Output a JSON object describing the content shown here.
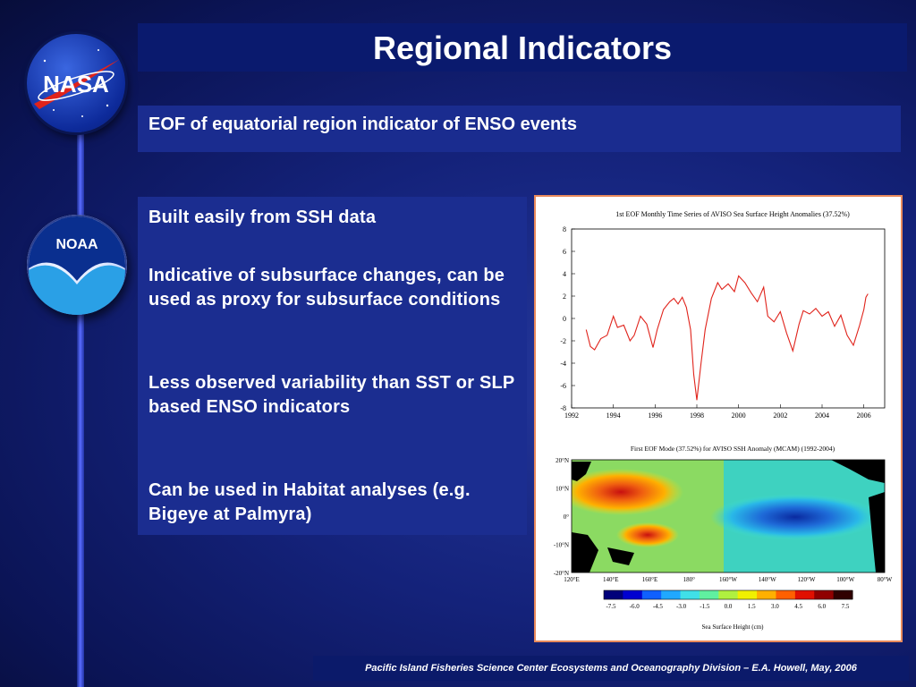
{
  "slide": {
    "title": "Regional Indicators",
    "subtitle": "EOF of equatorial region indicator of ENSO events",
    "bullets": [
      "Built easily from SSH data",
      "Indicative of subsurface changes, can be used as proxy for subsurface conditions",
      "Less observed variability  than SST or SLP based ENSO indicators",
      "Can be used in Habitat analyses (e.g. Bigeye at Palmyra)"
    ],
    "footer": "Pacific Island Fisheries Science Center Ecosystems and Oceanography Division – E.A. Howell, May, 2006"
  },
  "logos": {
    "nasa": "NASA",
    "noaa": "NOAA"
  },
  "colors": {
    "accent_line": "#e0231b",
    "figure_border": "#e98a5c"
  },
  "map": {
    "title": "First EOF Mode (37.52%) for AVISO SSH Anomaly (MCAM) (1992-2004)",
    "lat_labels": [
      "20°N",
      "10°N",
      "0°",
      "-10°N",
      "-20°N"
    ],
    "lon_labels": [
      "120°E",
      "140°E",
      "160°E",
      "180°",
      "160°W",
      "140°W",
      "120°W",
      "100°W",
      "80°W"
    ],
    "colorbar_ticks": [
      "-7.5",
      "-6.0",
      "-4.5",
      "-3.0",
      "-1.5",
      "0.0",
      "1.5",
      "3.0",
      "4.5",
      "6.0",
      "7.5"
    ],
    "colorbar_label": "Sea Surface Height (cm)"
  },
  "chart_data": {
    "type": "line",
    "title": "1st EOF Monthly Time Series of AVISO Sea Surface Height Anomalies (37.52%)",
    "xlabel": "",
    "ylabel": "",
    "xlim": [
      1992,
      2007
    ],
    "ylim": [
      -8,
      8
    ],
    "xticks": [
      1992,
      1994,
      1996,
      1998,
      2000,
      2002,
      2004,
      2006
    ],
    "yticks": [
      -8,
      -6,
      -4,
      -2,
      0,
      2,
      4,
      6,
      8
    ],
    "grid": false,
    "series": [
      {
        "color": "#e0231b",
        "x": [
          1992.7,
          1992.9,
          1993.1,
          1993.4,
          1993.7,
          1994.0,
          1994.2,
          1994.5,
          1994.8,
          1995.0,
          1995.3,
          1995.6,
          1995.9,
          1996.1,
          1996.4,
          1996.7,
          1996.9,
          1997.1,
          1997.3,
          1997.5,
          1997.7,
          1997.85,
          1998.0,
          1998.2,
          1998.4,
          1998.7,
          1999.0,
          1999.2,
          1999.5,
          1999.8,
          2000.0,
          2000.3,
          2000.6,
          2000.9,
          2001.2,
          2001.4,
          2001.7,
          2002.0,
          2002.3,
          2002.6,
          2002.9,
          2003.1,
          2003.4,
          2003.7,
          2004.0,
          2004.3,
          2004.6,
          2004.9,
          2005.2,
          2005.5,
          2005.8,
          2006.0,
          2006.1,
          2006.2
        ],
        "y": [
          -1.0,
          -2.5,
          -2.8,
          -1.8,
          -1.5,
          0.2,
          -0.8,
          -0.6,
          -2.0,
          -1.5,
          0.2,
          -0.5,
          -2.6,
          -1.0,
          0.8,
          1.5,
          1.8,
          1.3,
          1.9,
          1.0,
          -1.0,
          -5.0,
          -7.3,
          -4.0,
          -1.0,
          1.8,
          3.2,
          2.6,
          3.1,
          2.4,
          3.8,
          3.2,
          2.3,
          1.5,
          2.8,
          0.2,
          -0.3,
          0.6,
          -1.3,
          -2.9,
          -0.5,
          0.7,
          0.4,
          0.9,
          0.2,
          0.6,
          -0.7,
          0.3,
          -1.5,
          -2.4,
          -0.6,
          0.8,
          1.9,
          2.2
        ]
      }
    ]
  }
}
